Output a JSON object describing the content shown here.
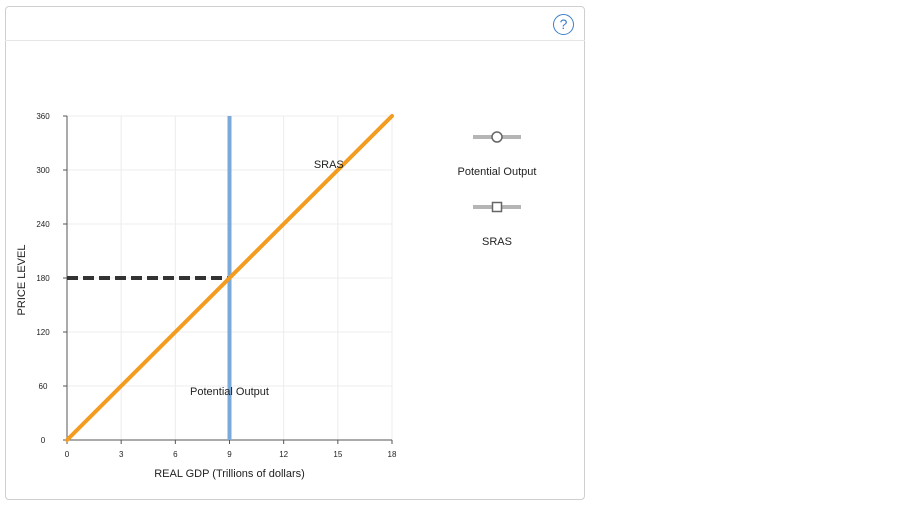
{
  "help": {
    "label": "?"
  },
  "chart_data": {
    "type": "line",
    "xlabel": "REAL GDP (Trillions of dollars)",
    "ylabel": "PRICE LEVEL",
    "xlim": [
      0,
      18
    ],
    "ylim": [
      0,
      360
    ],
    "x_ticks": [
      0,
      3,
      6,
      9,
      12,
      15,
      18
    ],
    "y_ticks": [
      0,
      60,
      120,
      180,
      240,
      300,
      360
    ],
    "grid": true,
    "series": [
      {
        "name": "SRAS",
        "color": "#f39c1f",
        "points": [
          [
            0,
            0
          ],
          [
            18,
            360
          ]
        ]
      },
      {
        "name": "Potential Output",
        "color": "#7aaad9",
        "points": [
          [
            9,
            0
          ],
          [
            9,
            360
          ]
        ]
      }
    ],
    "reference_lines": [
      {
        "style": "dashed",
        "color": "#333333",
        "points": [
          [
            0,
            180
          ],
          [
            9,
            180
          ]
        ]
      }
    ],
    "annotations": [
      {
        "text": "SRAS",
        "at": [
          14.5,
          302
        ]
      },
      {
        "text": "Potential Output",
        "at": [
          9,
          50
        ]
      }
    ],
    "legend": {
      "placement": "right",
      "items": [
        {
          "label": "Potential Output",
          "marker": "circle"
        },
        {
          "label": "SRAS",
          "marker": "square"
        }
      ]
    }
  }
}
